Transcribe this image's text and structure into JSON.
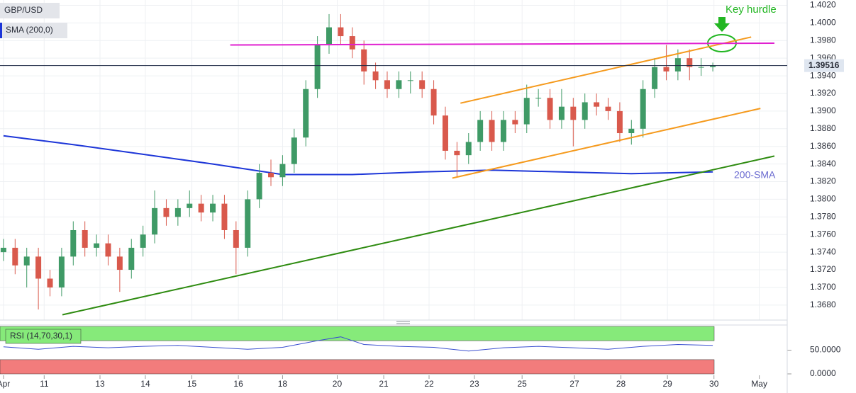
{
  "chart_data": [
    {
      "type": "candlestick",
      "name": "GBP/USD",
      "up_color": "#3f9a66",
      "down_color": "#d9594c",
      "grid": true,
      "x": [
        0,
        1,
        2,
        3,
        4,
        5,
        6,
        7,
        8,
        9,
        10,
        11,
        12,
        13,
        14,
        15,
        16,
        17,
        18,
        19,
        20,
        21,
        22,
        23,
        24,
        25,
        26,
        27,
        28,
        29,
        30,
        31,
        32,
        33,
        34,
        35,
        36,
        37,
        38,
        39,
        40,
        41,
        42,
        43,
        44,
        45,
        46,
        47,
        48,
        49,
        50,
        51,
        52,
        53,
        54,
        55,
        56,
        57,
        58,
        59,
        60,
        61
      ],
      "open": [
        1.374,
        1.3745,
        1.3725,
        1.3735,
        1.371,
        1.37,
        1.3735,
        1.3765,
        1.3745,
        1.375,
        1.3735,
        1.372,
        1.3745,
        1.376,
        1.379,
        1.378,
        1.379,
        1.3795,
        1.3785,
        1.3795,
        1.3765,
        1.3745,
        1.38,
        1.383,
        1.3825,
        1.384,
        1.387,
        1.3925,
        1.3975,
        1.3995,
        1.3985,
        1.397,
        1.3945,
        1.3935,
        1.3925,
        1.3935,
        1.3935,
        1.3925,
        1.3895,
        1.3855,
        1.385,
        1.3865,
        1.389,
        1.3865,
        1.389,
        1.3885,
        1.3915,
        1.3915,
        1.389,
        1.3905,
        1.389,
        1.391,
        1.3905,
        1.39,
        1.3875,
        1.388,
        1.3925,
        1.395,
        1.3945,
        1.396,
        1.395,
        1.395
      ],
      "high": [
        1.3755,
        1.3755,
        1.3745,
        1.3745,
        1.372,
        1.3745,
        1.3775,
        1.3775,
        1.376,
        1.376,
        1.3745,
        1.3755,
        1.377,
        1.381,
        1.38,
        1.38,
        1.381,
        1.3805,
        1.3805,
        1.3805,
        1.3775,
        1.381,
        1.384,
        1.3845,
        1.385,
        1.388,
        1.3935,
        1.3985,
        1.401,
        1.401,
        1.3995,
        1.398,
        1.3955,
        1.3945,
        1.3945,
        1.3945,
        1.3945,
        1.3935,
        1.3905,
        1.3865,
        1.3875,
        1.39,
        1.39,
        1.39,
        1.39,
        1.393,
        1.3925,
        1.3925,
        1.3925,
        1.3915,
        1.392,
        1.392,
        1.3915,
        1.391,
        1.389,
        1.3935,
        1.396,
        1.3975,
        1.397,
        1.397,
        1.396,
        1.3955
      ],
      "low": [
        1.373,
        1.3715,
        1.37,
        1.3675,
        1.369,
        1.369,
        1.3725,
        1.3735,
        1.3735,
        1.3725,
        1.3695,
        1.371,
        1.3735,
        1.375,
        1.377,
        1.377,
        1.378,
        1.3775,
        1.3775,
        1.3755,
        1.3715,
        1.3735,
        1.379,
        1.3815,
        1.3815,
        1.383,
        1.386,
        1.3915,
        1.3965,
        1.3975,
        1.396,
        1.393,
        1.3925,
        1.3915,
        1.3915,
        1.392,
        1.3915,
        1.3885,
        1.3845,
        1.3825,
        1.384,
        1.3855,
        1.3855,
        1.3855,
        1.3875,
        1.3875,
        1.3905,
        1.388,
        1.388,
        1.386,
        1.388,
        1.3895,
        1.389,
        1.3865,
        1.3862,
        1.387,
        1.3915,
        1.3935,
        1.3935,
        1.3935,
        1.394,
        1.3945
      ],
      "close": [
        1.3745,
        1.3725,
        1.3735,
        1.371,
        1.37,
        1.3735,
        1.3765,
        1.3745,
        1.375,
        1.3735,
        1.372,
        1.3745,
        1.376,
        1.379,
        1.378,
        1.379,
        1.3795,
        1.3785,
        1.3795,
        1.3765,
        1.3745,
        1.38,
        1.383,
        1.3825,
        1.384,
        1.387,
        1.3925,
        1.3975,
        1.3995,
        1.3985,
        1.397,
        1.3945,
        1.3935,
        1.3925,
        1.3935,
        1.3935,
        1.3925,
        1.3895,
        1.3855,
        1.385,
        1.3865,
        1.389,
        1.3865,
        1.389,
        1.3885,
        1.3915,
        1.3915,
        1.389,
        1.3905,
        1.389,
        1.391,
        1.3905,
        1.39,
        1.3875,
        1.388,
        1.3925,
        1.395,
        1.3945,
        1.396,
        1.395,
        1.395,
        1.3952
      ],
      "xlim": [
        -0.3,
        67.4
      ],
      "xticks": [
        {
          "value": 0,
          "label": "Apr"
        },
        {
          "value": 3.5,
          "label": "11"
        },
        {
          "value": 8.3,
          "label": "13"
        },
        {
          "value": 12.2,
          "label": "14"
        },
        {
          "value": 16.2,
          "label": "15"
        },
        {
          "value": 20.2,
          "label": "16"
        },
        {
          "value": 24,
          "label": "18"
        },
        {
          "value": 28.7,
          "label": "20"
        },
        {
          "value": 32.7,
          "label": "21"
        },
        {
          "value": 36.6,
          "label": "22"
        },
        {
          "value": 40.5,
          "label": "23"
        },
        {
          "value": 44.6,
          "label": "25"
        },
        {
          "value": 49.1,
          "label": "27"
        },
        {
          "value": 53.1,
          "label": "28"
        },
        {
          "value": 57.1,
          "label": "29"
        },
        {
          "value": 61.1,
          "label": "30"
        },
        {
          "value": 65,
          "label": "May"
        }
      ],
      "ylim": [
        1.3663,
        1.4026
      ],
      "yticks": [
        {
          "value": 1.368,
          "label": "1.3680"
        },
        {
          "value": 1.37,
          "label": "1.3700"
        },
        {
          "value": 1.372,
          "label": "1.3720"
        },
        {
          "value": 1.374,
          "label": "1.3740"
        },
        {
          "value": 1.376,
          "label": "1.3760"
        },
        {
          "value": 1.378,
          "label": "1.3780"
        },
        {
          "value": 1.38,
          "label": "1.3800"
        },
        {
          "value": 1.382,
          "label": "1.3820"
        },
        {
          "value": 1.384,
          "label": "1.3840"
        },
        {
          "value": 1.386,
          "label": "1.3860"
        },
        {
          "value": 1.388,
          "label": "1.3880"
        },
        {
          "value": 1.39,
          "label": "1.3900"
        },
        {
          "value": 1.392,
          "label": "1.3920"
        },
        {
          "value": 1.394,
          "label": "1.3940"
        },
        {
          "value": 1.396,
          "label": "1.3960"
        },
        {
          "value": 1.398,
          "label": "1.3980"
        },
        {
          "value": 1.4,
          "label": "1.4000"
        },
        {
          "value": 1.402,
          "label": "1.4020"
        }
      ],
      "overlays": [
        {
          "name": "SMA (200,0)",
          "color": "#1d36d8",
          "x": [
            0,
            6,
            12,
            18,
            24,
            30,
            36,
            42,
            48,
            54,
            61
          ],
          "values": [
            1.3872,
            1.3862,
            1.3851,
            1.384,
            1.3828,
            1.3828,
            1.3831,
            1.3833,
            1.3831,
            1.3829,
            1.3831
          ]
        }
      ],
      "trend_lines": [
        {
          "color": "#2e8b10",
          "x": [
            5.07,
            66.3
          ],
          "values": [
            1.3669,
            1.3849
          ]
        },
        {
          "color": "#f59a1d",
          "x": [
            39.3,
            64.3
          ],
          "values": [
            1.3909,
            1.3984
          ]
        },
        {
          "color": "#f59a1d",
          "x": [
            38.6,
            65.1
          ],
          "values": [
            1.3824,
            1.3903
          ]
        },
        {
          "color": "#e020d0",
          "x": [
            19.5,
            66.3
          ],
          "values": [
            1.3975,
            1.3977
          ]
        }
      ],
      "last_price": {
        "value": 1.39516,
        "label": "1.39516"
      },
      "key_hurdle": "Key hurdle",
      "sma_label": "200-SMA"
    },
    {
      "type": "line",
      "name": "RSI (14,70,30,1)",
      "color": "#3a4fd0",
      "x": [
        0,
        3,
        6,
        9,
        12,
        15,
        18,
        21,
        24,
        27,
        29,
        31,
        34,
        37,
        40,
        43,
        46,
        49,
        52,
        55,
        58,
        61
      ],
      "values": [
        57,
        52,
        58,
        55,
        58,
        60,
        56,
        52,
        56,
        70,
        78,
        62,
        58,
        56,
        48,
        55,
        58,
        55,
        52,
        58,
        62,
        60
      ],
      "ylim": [
        0,
        100
      ],
      "yticks": [
        {
          "value": 0,
          "label": "0.0000"
        },
        {
          "value": 50,
          "label": "50.0000"
        }
      ],
      "bands": [
        {
          "range": [
            70,
            100
          ],
          "color": "#86ea7a"
        },
        {
          "range": [
            0,
            30
          ],
          "color": "#f27c7c"
        }
      ]
    }
  ]
}
